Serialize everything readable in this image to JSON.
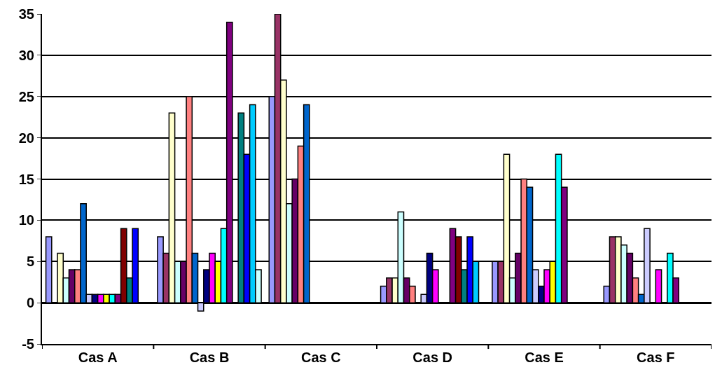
{
  "chart_data": {
    "type": "bar",
    "categories": [
      "Cas A",
      "Cas B",
      "Cas C",
      "Cas D",
      "Cas E",
      "Cas F"
    ],
    "series": [
      {
        "color": "#9999ff",
        "values": [
          8,
          8,
          25,
          2,
          5,
          2
        ]
      },
      {
        "color": "#993366",
        "values": [
          null,
          6,
          35,
          3,
          5,
          8
        ]
      },
      {
        "color": "#ffffcc",
        "values": [
          6,
          23,
          27,
          3,
          18,
          8
        ]
      },
      {
        "color": "#ccffff",
        "values": [
          3,
          5,
          12,
          11,
          3,
          7
        ]
      },
      {
        "color": "#660066",
        "values": [
          4,
          5,
          15,
          3,
          6,
          6
        ]
      },
      {
        "color": "#ff8080",
        "values": [
          4,
          25,
          19,
          2,
          15,
          3
        ]
      },
      {
        "color": "#0066cc",
        "values": [
          12,
          6,
          24,
          null,
          14,
          1
        ]
      },
      {
        "color": "#ccccff",
        "values": [
          1,
          -1,
          null,
          1,
          4,
          9
        ]
      },
      {
        "color": "#000080",
        "values": [
          1,
          4,
          null,
          6,
          2,
          null
        ]
      },
      {
        "color": "#ff00ff",
        "values": [
          1,
          6,
          null,
          4,
          4,
          4
        ]
      },
      {
        "color": "#ffff00",
        "values": [
          1,
          5,
          null,
          null,
          5,
          null
        ]
      },
      {
        "color": "#00ffff",
        "values": [
          1,
          9,
          null,
          null,
          18,
          6
        ]
      },
      {
        "color": "#800080",
        "values": [
          1,
          34,
          null,
          9,
          14,
          3
        ]
      },
      {
        "color": "#800000",
        "values": [
          9,
          null,
          null,
          8,
          null,
          null
        ]
      },
      {
        "color": "#008080",
        "values": [
          3,
          23,
          null,
          4,
          null,
          null
        ]
      },
      {
        "color": "#0000ff",
        "values": [
          9,
          18,
          null,
          8,
          null,
          null
        ]
      },
      {
        "color": "#00ccff",
        "values": [
          null,
          24,
          null,
          5,
          null,
          null
        ]
      },
      {
        "color": "#ccffff",
        "values": [
          null,
          4,
          null,
          null,
          null,
          null
        ]
      }
    ],
    "ylim": [
      -5,
      35
    ],
    "yticks": [
      -5,
      0,
      5,
      10,
      15,
      20,
      25,
      30,
      35
    ],
    "grid": "y"
  }
}
